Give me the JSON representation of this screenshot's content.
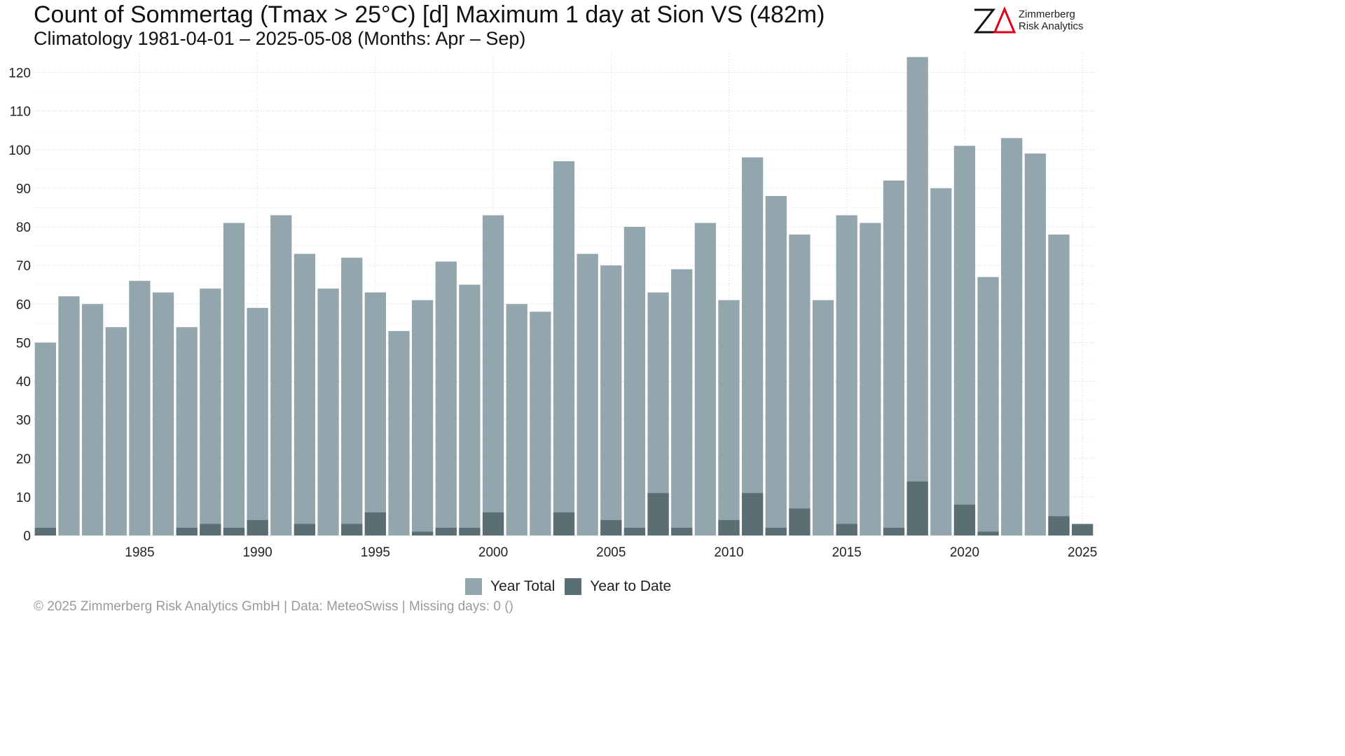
{
  "header": {
    "title": "Count of Sommertag (Tmax > 25°C) [d] Maximum 1 day at Sion  VS (482m)",
    "subtitle": "Climatology 1981-04-01 – 2025-05-08 (Months: Apr – Sep)"
  },
  "logo": {
    "line1": "Zimmerberg",
    "line2": "Risk Analytics",
    "mark_color": "#111111",
    "accent_color": "#e0001b"
  },
  "footer": {
    "text": "©  2025 Zimmerberg Risk Analytics GmbH | Data: MeteoSwiss | Missing days: 0 ()"
  },
  "chart_data": {
    "type": "bar",
    "categories": [
      1981,
      1982,
      1983,
      1984,
      1985,
      1986,
      1987,
      1988,
      1989,
      1990,
      1991,
      1992,
      1993,
      1994,
      1995,
      1996,
      1997,
      1998,
      1999,
      2000,
      2001,
      2002,
      2003,
      2004,
      2005,
      2006,
      2007,
      2008,
      2009,
      2010,
      2011,
      2012,
      2013,
      2014,
      2015,
      2016,
      2017,
      2018,
      2019,
      2020,
      2021,
      2022,
      2023,
      2024,
      2025
    ],
    "series": [
      {
        "name": "Year Total",
        "color": "#93a6ad",
        "values": [
          50,
          62,
          60,
          54,
          66,
          63,
          54,
          64,
          81,
          59,
          83,
          73,
          64,
          72,
          63,
          53,
          61,
          71,
          65,
          83,
          60,
          58,
          97,
          73,
          70,
          80,
          63,
          69,
          81,
          61,
          98,
          88,
          78,
          61,
          83,
          81,
          92,
          124,
          90,
          101,
          67,
          103,
          99,
          78,
          null
        ]
      },
      {
        "name": "Year to Date",
        "color": "#5a6e74",
        "values": [
          2,
          0,
          0,
          0,
          0,
          0,
          2,
          3,
          2,
          4,
          0,
          3,
          0,
          3,
          6,
          0,
          1,
          2,
          2,
          6,
          0,
          0,
          6,
          0,
          4,
          2,
          11,
          2,
          0,
          4,
          11,
          2,
          7,
          0,
          3,
          0,
          2,
          14,
          0,
          8,
          1,
          0,
          0,
          5,
          3
        ]
      }
    ],
    "ylim": [
      0,
      125
    ],
    "yticks": [
      0,
      10,
      20,
      30,
      40,
      50,
      60,
      70,
      80,
      90,
      100,
      110,
      120
    ],
    "xticks": [
      1985,
      1990,
      1995,
      2000,
      2005,
      2010,
      2015,
      2020,
      2025
    ],
    "grid": true,
    "legend_position": "bottom"
  }
}
